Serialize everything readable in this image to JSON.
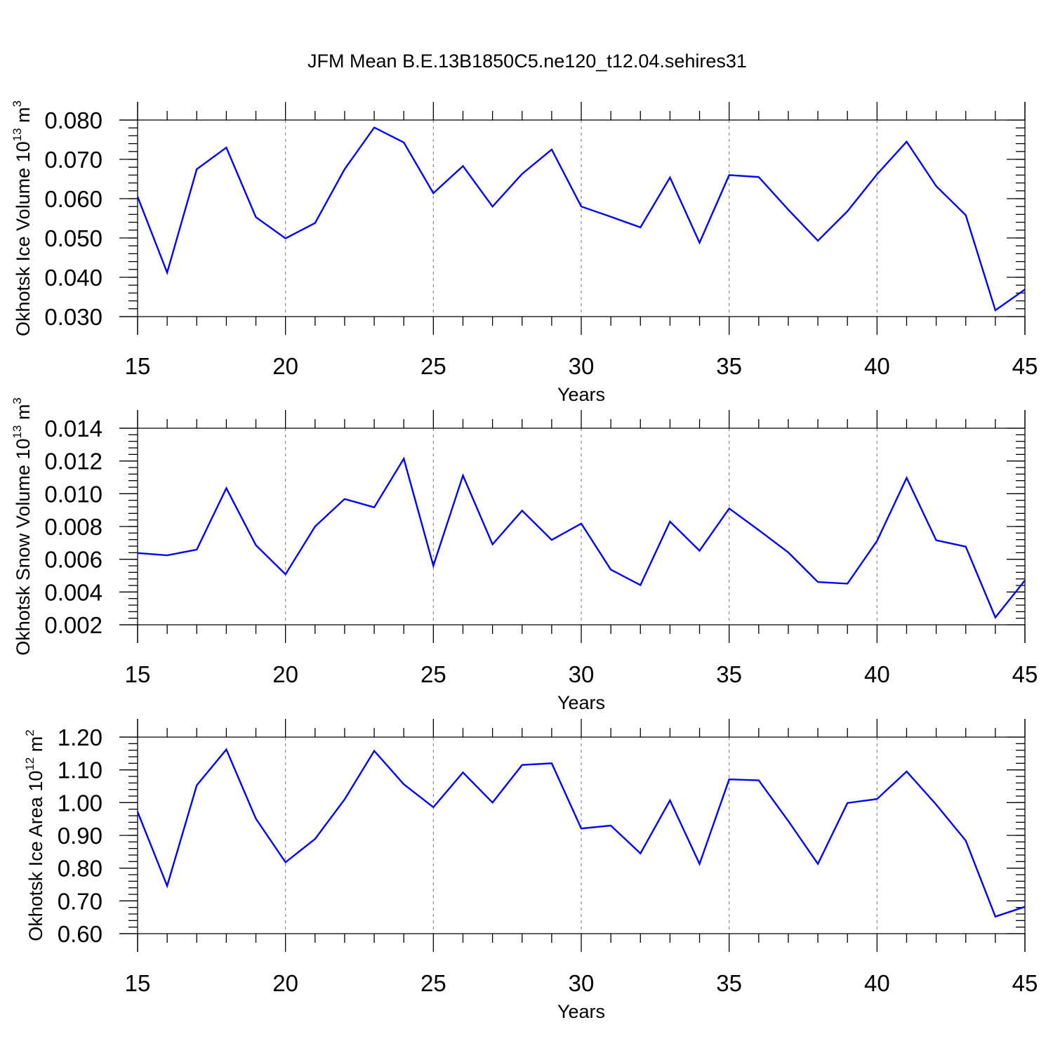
{
  "figure": {
    "title": "JFM Mean B.E.13B1850C5.ne120_t12.04.sehires31"
  },
  "chart_data": [
    {
      "type": "line",
      "title": "",
      "xlabel": "Years",
      "ylabel": {
        "text": "Okhotsk Ice Volume 10",
        "exp": "13",
        "unit": " m",
        "unit_exp": "3"
      },
      "xlim": [
        15,
        45
      ],
      "ylim": [
        0.03,
        0.08
      ],
      "xticks": [
        15,
        20,
        25,
        30,
        35,
        40,
        45
      ],
      "xtick_labels": [
        "15",
        "20",
        "25",
        "30",
        "35",
        "40",
        "45"
      ],
      "yticks": [
        0.03,
        0.04,
        0.05,
        0.06,
        0.07,
        0.08
      ],
      "ytick_labels": [
        "0.030",
        "0.040",
        "0.050",
        "0.060",
        "0.070",
        "0.080"
      ],
      "y_minor_step": 0.002,
      "grid": "vertical dashed at major x ticks",
      "line_color": "#0000ff",
      "series": [
        {
          "x": [
            15,
            16,
            17,
            18,
            19,
            20,
            21,
            22,
            23,
            24,
            25,
            26,
            27,
            28,
            29,
            30,
            31,
            32,
            33,
            34,
            35,
            36,
            37,
            38,
            39,
            40,
            41,
            42,
            43,
            44,
            45
          ],
          "values": [
            0.0605,
            0.0412,
            0.0675,
            0.073,
            0.0553,
            0.0499,
            0.0538,
            0.0675,
            0.0781,
            0.0743,
            0.0614,
            0.0683,
            0.058,
            0.0663,
            0.0725,
            0.058,
            0.0554,
            0.0527,
            0.0654,
            0.0488,
            0.066,
            0.0655,
            0.0572,
            0.0493,
            0.0568,
            0.0662,
            0.0745,
            0.0632,
            0.0558,
            0.0316,
            0.0369
          ]
        }
      ]
    },
    {
      "type": "line",
      "title": "",
      "xlabel": "Years",
      "ylabel": {
        "text": "Okhotsk Snow Volume 10",
        "exp": "13",
        "unit": " m",
        "unit_exp": "3"
      },
      "xlim": [
        15,
        45
      ],
      "ylim": [
        0.002,
        0.014
      ],
      "xticks": [
        15,
        20,
        25,
        30,
        35,
        40,
        45
      ],
      "xtick_labels": [
        "15",
        "20",
        "25",
        "30",
        "35",
        "40",
        "45"
      ],
      "yticks": [
        0.002,
        0.004,
        0.006,
        0.008,
        0.01,
        0.012,
        0.014
      ],
      "ytick_labels": [
        "0.002",
        "0.004",
        "0.006",
        "0.008",
        "0.010",
        "0.012",
        "0.014"
      ],
      "y_minor_step": 0.0004,
      "grid": "vertical dashed at major x ticks",
      "line_color": "#0000ff",
      "series": [
        {
          "x": [
            15,
            16,
            17,
            18,
            19,
            20,
            21,
            22,
            23,
            24,
            25,
            26,
            27,
            28,
            29,
            30,
            31,
            32,
            33,
            34,
            35,
            36,
            37,
            38,
            39,
            40,
            41,
            42,
            43,
            44,
            45
          ],
          "values": [
            0.00638,
            0.00624,
            0.00659,
            0.01034,
            0.00686,
            0.00508,
            0.008,
            0.00968,
            0.00917,
            0.01214,
            0.00561,
            0.01111,
            0.00691,
            0.00897,
            0.00718,
            0.00818,
            0.00537,
            0.00442,
            0.0083,
            0.00652,
            0.0091,
            0.00778,
            0.00642,
            0.00461,
            0.00451,
            0.00712,
            0.01097,
            0.00716,
            0.00677,
            0.00245,
            0.00471
          ]
        }
      ]
    },
    {
      "type": "line",
      "title": "",
      "xlabel": "Years",
      "ylabel": {
        "text": "Okhotsk Ice Area 10",
        "exp": "12",
        "unit": " m",
        "unit_exp": "2"
      },
      "xlim": [
        15,
        45
      ],
      "ylim": [
        0.6,
        1.2
      ],
      "xticks": [
        15,
        20,
        25,
        30,
        35,
        40,
        45
      ],
      "xtick_labels": [
        "15",
        "20",
        "25",
        "30",
        "35",
        "40",
        "45"
      ],
      "yticks": [
        0.6,
        0.7,
        0.8,
        0.9,
        1.0,
        1.1,
        1.2
      ],
      "ytick_labels": [
        "0.60",
        "0.70",
        "0.80",
        "0.90",
        "1.00",
        "1.10",
        "1.20"
      ],
      "y_minor_step": 0.02,
      "grid": "vertical dashed at major x ticks",
      "line_color": "#0000ff",
      "series": [
        {
          "x": [
            15,
            16,
            17,
            18,
            19,
            20,
            21,
            22,
            23,
            24,
            25,
            26,
            27,
            28,
            29,
            30,
            31,
            32,
            33,
            34,
            35,
            36,
            37,
            38,
            39,
            40,
            41,
            42,
            43,
            44,
            45
          ],
          "values": [
            0.972,
            0.746,
            1.053,
            1.162,
            0.951,
            0.818,
            0.889,
            1.01,
            1.158,
            1.056,
            0.986,
            1.092,
            1.0,
            1.115,
            1.12,
            0.921,
            0.93,
            0.845,
            1.007,
            0.813,
            1.071,
            1.068,
            0.944,
            0.813,
            0.999,
            1.011,
            1.095,
            0.994,
            0.884,
            0.652,
            0.682
          ]
        }
      ]
    }
  ]
}
